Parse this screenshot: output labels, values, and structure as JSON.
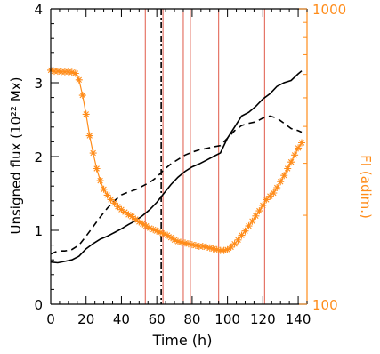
{
  "chart_data": {
    "type": "line",
    "xlabel": "Time (h)",
    "ylabel_left": "Unsigned flux (10²² Mx)",
    "ylabel_right": "FI (adim.)",
    "xlim": [
      0,
      145
    ],
    "x_ticks": [
      0,
      20,
      40,
      60,
      80,
      100,
      120,
      140
    ],
    "ylim_left": [
      0,
      4
    ],
    "y_ticks_left": [
      0,
      1,
      2,
      3,
      4
    ],
    "ylim_right": [
      100,
      1000
    ],
    "y_ticks_right": [
      100,
      1000
    ],
    "right_axis_scale": "log",
    "grid": false,
    "colors": {
      "axes": "#000000",
      "fi_series": "#ff8c1a",
      "vertical_markers": "#e05a4a",
      "dash_dot_marker": "#000000"
    },
    "series": [
      {
        "axis": "left",
        "style": "solid",
        "color": "#000000",
        "x": [
          0,
          4,
          8,
          12,
          16,
          20,
          24,
          28,
          32,
          36,
          40,
          44,
          48,
          52,
          56,
          60,
          64,
          68,
          72,
          76,
          80,
          84,
          88,
          92,
          96,
          100,
          104,
          108,
          112,
          116,
          120,
          124,
          128,
          132,
          136,
          140,
          142
        ],
        "y": [
          0.57,
          0.56,
          0.58,
          0.6,
          0.65,
          0.75,
          0.82,
          0.88,
          0.92,
          0.97,
          1.02,
          1.08,
          1.13,
          1.2,
          1.28,
          1.38,
          1.5,
          1.62,
          1.72,
          1.8,
          1.86,
          1.9,
          1.95,
          2.0,
          2.05,
          2.25,
          2.4,
          2.55,
          2.6,
          2.68,
          2.78,
          2.85,
          2.95,
          3.0,
          3.03,
          3.12,
          3.16
        ]
      },
      {
        "axis": "left",
        "style": "dashed",
        "color": "#000000",
        "x": [
          0,
          4,
          8,
          12,
          16,
          20,
          24,
          28,
          32,
          36,
          40,
          44,
          48,
          52,
          56,
          60,
          64,
          68,
          72,
          76,
          80,
          84,
          88,
          92,
          96,
          100,
          104,
          108,
          112,
          116,
          120,
          124,
          128,
          132,
          136,
          140,
          142
        ],
        "y": [
          0.68,
          0.72,
          0.72,
          0.74,
          0.8,
          0.92,
          1.05,
          1.18,
          1.3,
          1.4,
          1.48,
          1.52,
          1.55,
          1.6,
          1.65,
          1.72,
          1.82,
          1.9,
          1.96,
          2.02,
          2.06,
          2.09,
          2.11,
          2.13,
          2.15,
          2.25,
          2.35,
          2.42,
          2.45,
          2.47,
          2.52,
          2.55,
          2.52,
          2.45,
          2.38,
          2.35,
          2.33
        ]
      },
      {
        "axis": "right",
        "style": "line-with-asterisks",
        "color": "#ff8c1a",
        "x": [
          0,
          2,
          4,
          6,
          8,
          10,
          12,
          14,
          16,
          18,
          20,
          22,
          24,
          26,
          28,
          30,
          32,
          34,
          36,
          38,
          40,
          42,
          44,
          46,
          48,
          50,
          52,
          54,
          56,
          58,
          60,
          62,
          64,
          66,
          68,
          70,
          72,
          74,
          76,
          78,
          80,
          82,
          84,
          86,
          88,
          90,
          92,
          94,
          96,
          98,
          100,
          102,
          104,
          106,
          108,
          110,
          112,
          114,
          116,
          118,
          120,
          122,
          124,
          126,
          128,
          130,
          132,
          134,
          136,
          138,
          140,
          142
        ],
        "y": [
          620,
          615,
          615,
          612,
          612,
          612,
          610,
          605,
          575,
          510,
          440,
          372,
          325,
          288,
          262,
          245,
          234,
          226,
          220,
          214,
          209,
          205,
          201,
          198,
          194,
          190,
          187,
          184,
          181,
          179,
          177,
          175,
          173,
          171,
          168,
          165,
          163,
          162,
          161,
          160,
          159,
          158,
          157,
          157,
          156,
          155,
          154,
          153,
          152,
          152,
          153,
          156,
          160,
          165,
          171,
          177,
          184,
          191,
          199,
          207,
          216,
          226,
          232,
          238,
          248,
          260,
          273,
          288,
          303,
          320,
          338,
          352
        ]
      }
    ],
    "vertical_lines": {
      "dash_dot": [
        62.5
      ],
      "solid": [
        53.5,
        63.5,
        75,
        79,
        95,
        121
      ]
    }
  }
}
